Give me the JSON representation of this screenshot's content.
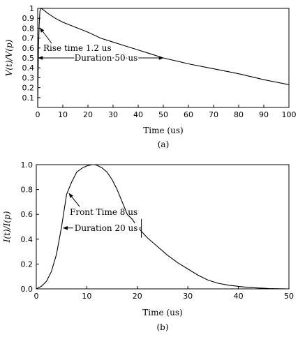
{
  "chart_data": [
    {
      "type": "line",
      "panel_label": "(a)",
      "xlabel": "Time (us)",
      "ylabel": "V(t)/V(p)",
      "xlim": [
        0,
        100
      ],
      "ylim": [
        0,
        1
      ],
      "x_ticks": [
        "0",
        "10",
        "20",
        "30",
        "40",
        "50",
        "60",
        "70",
        "80",
        "90",
        "100"
      ],
      "y_ticks": [
        "0.1",
        "0.2",
        "0.3",
        "0.4",
        "0.5",
        "0.6",
        "0.7",
        "0.8",
        "0.9",
        "1"
      ],
      "grid": false,
      "series": [
        {
          "x": [
            0,
            0.3,
            0.6,
            0.9,
            1.2,
            2,
            4,
            7,
            10,
            15,
            20,
            25,
            30,
            35,
            40,
            45,
            50,
            60,
            70,
            80,
            90,
            100
          ],
          "y": [
            0,
            0.6,
            0.85,
            0.97,
            1.0,
            0.99,
            0.95,
            0.9,
            0.86,
            0.81,
            0.76,
            0.7,
            0.66,
            0.62,
            0.58,
            0.54,
            0.5,
            0.44,
            0.39,
            0.34,
            0.28,
            0.23
          ]
        }
      ],
      "annotations": [
        {
          "id": "rise",
          "text": "Rise time 1.2 us",
          "x": 1.2
        },
        {
          "id": "duration",
          "text": "Duration 50 us",
          "x_start": 0,
          "x_end": 50,
          "y": 0.5
        }
      ]
    },
    {
      "type": "line",
      "panel_label": "(b)",
      "xlabel": "Time (us)",
      "ylabel": "I(t)/I(p)",
      "xlim": [
        0,
        50
      ],
      "ylim": [
        0,
        1
      ],
      "x_ticks": [
        "0",
        "10",
        "20",
        "30",
        "40",
        "50"
      ],
      "y_ticks": [
        "0.0",
        "0.2",
        "0.4",
        "0.6",
        "0.8",
        "1.0"
      ],
      "grid": false,
      "series": [
        {
          "x": [
            0,
            1,
            2,
            3,
            4,
            5,
            6,
            7,
            8,
            9,
            10,
            11,
            11.5,
            12,
            13,
            14,
            15,
            16,
            17,
            18,
            19,
            20,
            21,
            22,
            24,
            26,
            28,
            30,
            32,
            34,
            36,
            38,
            40,
            42,
            44,
            46,
            48,
            50
          ],
          "y": [
            0,
            0.02,
            0.06,
            0.14,
            0.28,
            0.5,
            0.76,
            0.86,
            0.94,
            0.97,
            0.99,
            1.0,
            1.0,
            0.995,
            0.975,
            0.94,
            0.88,
            0.8,
            0.7,
            0.6,
            0.56,
            0.5,
            0.455,
            0.41,
            0.34,
            0.27,
            0.21,
            0.16,
            0.11,
            0.07,
            0.045,
            0.03,
            0.02,
            0.012,
            0.007,
            0.003,
            0.001,
            0
          ]
        }
      ],
      "annotations": [
        {
          "id": "front",
          "text": "Front Time 8 us",
          "x": 6.2,
          "y": 0.78
        },
        {
          "id": "duration",
          "text": "Duration 20 us",
          "x_start": 5.2,
          "x_end": 20.8,
          "y": 0.49
        }
      ]
    }
  ]
}
